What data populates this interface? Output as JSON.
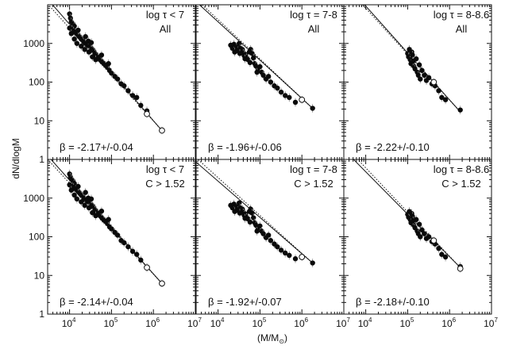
{
  "chart_data": {
    "type": "scatter",
    "log_x": true,
    "log_y": true,
    "xlim": [
      3000,
      10000000
    ],
    "ylim": [
      1,
      10000
    ],
    "xlabel": "(M/M",
    "xlabel_sub": "⊙",
    "xlabel_end": ")",
    "ylabel": "dN/dlogM",
    "x_tick_base": "10",
    "x_tick_exponents": [
      "4",
      "5",
      "6",
      "7"
    ],
    "y_tick_labels": [
      "1",
      "10",
      "100",
      "1000"
    ],
    "y_tick_values": [
      1,
      10,
      100,
      1000
    ],
    "panels": [
      {
        "row": 0,
        "col": 0,
        "label_line1": "log τ < 7",
        "label_line2": "All",
        "beta_text": "β = -2.17+/-0.04",
        "fit_solid": {
          "x": [
            3000,
            1600000
          ],
          "y": [
            14000,
            5.6
          ]
        },
        "fit_dotted": {
          "x": [
            3000,
            1600000
          ],
          "y": [
            10500,
            5.6
          ]
        },
        "points": [
          [
            10000,
            5800
          ],
          [
            10500,
            4500
          ],
          [
            11000,
            3600
          ],
          [
            12000,
            3200
          ],
          [
            13000,
            2800
          ],
          [
            10000,
            2500
          ],
          [
            11500,
            2300
          ],
          [
            12500,
            2100
          ],
          [
            14000,
            1900
          ],
          [
            15000,
            1750
          ],
          [
            16000,
            1650
          ],
          [
            17000,
            1500
          ],
          [
            18000,
            1450
          ],
          [
            19000,
            1300
          ],
          [
            20000,
            1250
          ],
          [
            21000,
            1150
          ],
          [
            22000,
            1100
          ],
          [
            24000,
            1000
          ],
          [
            25000,
            950
          ],
          [
            27000,
            900
          ],
          [
            28000,
            1150
          ],
          [
            30000,
            850
          ],
          [
            32000,
            780
          ],
          [
            34000,
            720
          ],
          [
            36000,
            680
          ],
          [
            38000,
            620
          ],
          [
            40000,
            560
          ],
          [
            43000,
            520
          ],
          [
            45000,
            470
          ],
          [
            48000,
            430
          ],
          [
            52000,
            400
          ],
          [
            55000,
            370
          ],
          [
            60000,
            330
          ],
          [
            66000,
            300
          ],
          [
            72000,
            270
          ],
          [
            80000,
            240
          ],
          [
            90000,
            200
          ],
          [
            100000,
            170
          ],
          [
            120000,
            140
          ],
          [
            140000,
            120
          ],
          [
            170000,
            90
          ],
          [
            200000,
            80
          ],
          [
            250000,
            60
          ],
          [
            320000,
            45
          ],
          [
            400000,
            40
          ],
          [
            500000,
            25
          ],
          [
            700000,
            18
          ],
          [
            13000,
            1300
          ],
          [
            15000,
            1000
          ],
          [
            19000,
            850
          ],
          [
            23000,
            700
          ],
          [
            29000,
            600
          ],
          [
            35000,
            450
          ],
          [
            42000,
            380
          ],
          [
            11000,
            1800
          ],
          [
            16000,
            2200
          ],
          [
            24000,
            1500
          ],
          [
            33000,
            1050
          ],
          [
            58000,
            500
          ],
          [
            85000,
            300
          ]
        ],
        "open_points": [
          [
            700000,
            15
          ],
          [
            1600000,
            5.6
          ]
        ]
      },
      {
        "row": 0,
        "col": 1,
        "label_line1": "log τ = 7-8",
        "label_line2": "All",
        "beta_text": "β = -1.96+/-0.06",
        "fit_solid": {
          "x": [
            3000,
            1800000
          ],
          "y": [
            12000,
            21
          ]
        },
        "fit_dotted": {
          "x": [
            3000,
            1800000
          ],
          "y": [
            14000,
            21
          ]
        },
        "points": [
          [
            20000,
            900
          ],
          [
            22000,
            750
          ],
          [
            24000,
            950
          ],
          [
            26000,
            700
          ],
          [
            28000,
            800
          ],
          [
            30000,
            650
          ],
          [
            32000,
            1000
          ],
          [
            34000,
            750
          ],
          [
            36000,
            620
          ],
          [
            38000,
            700
          ],
          [
            40000,
            560
          ],
          [
            42000,
            480
          ],
          [
            45000,
            520
          ],
          [
            48000,
            430
          ],
          [
            52000,
            380
          ],
          [
            56000,
            600
          ],
          [
            60000,
            700
          ],
          [
            65000,
            550
          ],
          [
            70000,
            420
          ],
          [
            75000,
            300
          ],
          [
            80000,
            260
          ],
          [
            90000,
            220
          ],
          [
            100000,
            250
          ],
          [
            110000,
            180
          ],
          [
            120000,
            150
          ],
          [
            140000,
            120
          ],
          [
            160000,
            140
          ],
          [
            180000,
            100
          ],
          [
            220000,
            80
          ],
          [
            260000,
            70
          ],
          [
            320000,
            55
          ],
          [
            400000,
            45
          ],
          [
            500000,
            40
          ],
          [
            700000,
            30
          ],
          [
            1800000,
            21
          ],
          [
            25000,
            600
          ],
          [
            33000,
            550
          ],
          [
            44000,
            400
          ],
          [
            58000,
            320
          ],
          [
            85000,
            180
          ]
        ],
        "open_points": [
          [
            1000000,
            35
          ]
        ]
      },
      {
        "row": 0,
        "col": 2,
        "label_line1": "log τ = 8-8.6",
        "label_line2": "All",
        "beta_text": "β = -2.22+/-0.10",
        "fit_solid": {
          "x": [
            3000,
            1800000
          ],
          "y": [
            40000,
            17
          ]
        },
        "fit_dotted": {
          "x": [
            3000,
            1800000
          ],
          "y": [
            34000,
            17
          ]
        },
        "points": [
          [
            100000,
            550
          ],
          [
            105000,
            450
          ],
          [
            110000,
            700
          ],
          [
            115000,
            380
          ],
          [
            120000,
            300
          ],
          [
            125000,
            600
          ],
          [
            130000,
            500
          ],
          [
            140000,
            260
          ],
          [
            150000,
            220
          ],
          [
            160000,
            400
          ],
          [
            170000,
            180
          ],
          [
            180000,
            150
          ],
          [
            200000,
            120
          ],
          [
            220000,
            200
          ],
          [
            250000,
            150
          ],
          [
            280000,
            110
          ],
          [
            320000,
            130
          ],
          [
            380000,
            90
          ],
          [
            450000,
            80
          ],
          [
            550000,
            60
          ],
          [
            650000,
            40
          ],
          [
            800000,
            35
          ],
          [
            1800000,
            19
          ],
          [
            135000,
            350
          ],
          [
            190000,
            280
          ]
        ],
        "open_points": [
          [
            420000,
            100
          ]
        ]
      },
      {
        "row": 1,
        "col": 0,
        "label_line1": "log τ < 7",
        "label_line2": "C > 1.52",
        "beta_text": "β = -2.14+/-0.04",
        "fit_solid": {
          "x": [
            3000,
            1600000
          ],
          "y": [
            12500,
            6.2
          ]
        },
        "fit_dotted": {
          "x": [
            3000,
            1600000
          ],
          "y": [
            10000,
            6.2
          ]
        },
        "points": [
          [
            10000,
            4200
          ],
          [
            10500,
            3500
          ],
          [
            11000,
            3100
          ],
          [
            12000,
            2800
          ],
          [
            13000,
            2400
          ],
          [
            10000,
            2200
          ],
          [
            11500,
            2000
          ],
          [
            12500,
            1900
          ],
          [
            14000,
            1700
          ],
          [
            15000,
            1600
          ],
          [
            16000,
            1500
          ],
          [
            17000,
            1400
          ],
          [
            18000,
            1300
          ],
          [
            19000,
            1200
          ],
          [
            20000,
            1150
          ],
          [
            21000,
            1050
          ],
          [
            22000,
            1000
          ],
          [
            24000,
            900
          ],
          [
            25000,
            870
          ],
          [
            27000,
            820
          ],
          [
            28000,
            1000
          ],
          [
            30000,
            780
          ],
          [
            32000,
            700
          ],
          [
            34000,
            650
          ],
          [
            36000,
            620
          ],
          [
            38000,
            560
          ],
          [
            40000,
            500
          ],
          [
            43000,
            470
          ],
          [
            45000,
            430
          ],
          [
            48000,
            400
          ],
          [
            52000,
            370
          ],
          [
            55000,
            340
          ],
          [
            60000,
            300
          ],
          [
            66000,
            270
          ],
          [
            72000,
            250
          ],
          [
            80000,
            220
          ],
          [
            90000,
            180
          ],
          [
            100000,
            160
          ],
          [
            120000,
            130
          ],
          [
            140000,
            110
          ],
          [
            170000,
            80
          ],
          [
            200000,
            70
          ],
          [
            250000,
            55
          ],
          [
            320000,
            42
          ],
          [
            400000,
            35
          ],
          [
            500000,
            25
          ],
          [
            700000,
            16
          ],
          [
            13000,
            1200
          ],
          [
            15000,
            950
          ],
          [
            19000,
            800
          ],
          [
            23000,
            650
          ],
          [
            29000,
            560
          ],
          [
            35000,
            420
          ],
          [
            42000,
            350
          ],
          [
            11000,
            1600
          ],
          [
            16000,
            2000
          ],
          [
            24000,
            1400
          ],
          [
            33000,
            950
          ],
          [
            58000,
            460
          ],
          [
            85000,
            280
          ]
        ],
        "open_points": [
          [
            700000,
            16
          ],
          [
            1600000,
            6.2
          ]
        ]
      },
      {
        "row": 1,
        "col": 1,
        "label_line1": "log τ = 7-8",
        "label_line2": "C > 1.52",
        "beta_text": "β = -1.92+/-0.07",
        "fit_solid": {
          "x": [
            3000,
            1800000
          ],
          "y": [
            8500,
            21
          ]
        },
        "fit_dotted": {
          "x": [
            3000,
            1800000
          ],
          "y": [
            11000,
            21
          ]
        },
        "points": [
          [
            20000,
            650
          ],
          [
            22000,
            560
          ],
          [
            24000,
            700
          ],
          [
            26000,
            520
          ],
          [
            28000,
            600
          ],
          [
            30000,
            480
          ],
          [
            32000,
            750
          ],
          [
            34000,
            560
          ],
          [
            36000,
            460
          ],
          [
            38000,
            520
          ],
          [
            40000,
            420
          ],
          [
            42000,
            360
          ],
          [
            45000,
            390
          ],
          [
            48000,
            320
          ],
          [
            52000,
            290
          ],
          [
            56000,
            450
          ],
          [
            60000,
            520
          ],
          [
            65000,
            410
          ],
          [
            70000,
            310
          ],
          [
            75000,
            230
          ],
          [
            80000,
            200
          ],
          [
            90000,
            170
          ],
          [
            100000,
            190
          ],
          [
            110000,
            140
          ],
          [
            120000,
            120
          ],
          [
            140000,
            95
          ],
          [
            160000,
            110
          ],
          [
            180000,
            80
          ],
          [
            220000,
            65
          ],
          [
            260000,
            55
          ],
          [
            320000,
            45
          ],
          [
            400000,
            38
          ],
          [
            500000,
            33
          ],
          [
            700000,
            27
          ],
          [
            1800000,
            21
          ],
          [
            25000,
            450
          ],
          [
            33000,
            410
          ],
          [
            44000,
            300
          ],
          [
            58000,
            240
          ],
          [
            85000,
            140
          ]
        ],
        "open_points": [
          [
            1000000,
            30
          ]
        ]
      },
      {
        "row": 1,
        "col": 2,
        "label_line1": "log τ = 8-8.6",
        "label_line2": "C > 1.52",
        "beta_text": "β = -2.18+/-0.10",
        "fit_solid": {
          "x": [
            3000,
            1800000
          ],
          "y": [
            18000,
            16
          ]
        },
        "fit_dotted": {
          "x": [
            3000,
            1800000
          ],
          "y": [
            24000,
            16
          ]
        },
        "points": [
          [
            100000,
            380
          ],
          [
            105000,
            320
          ],
          [
            110000,
            450
          ],
          [
            115000,
            280
          ],
          [
            120000,
            230
          ],
          [
            125000,
            400
          ],
          [
            130000,
            340
          ],
          [
            140000,
            200
          ],
          [
            150000,
            170
          ],
          [
            160000,
            280
          ],
          [
            170000,
            140
          ],
          [
            180000,
            120
          ],
          [
            200000,
            100
          ],
          [
            220000,
            150
          ],
          [
            250000,
            120
          ],
          [
            280000,
            90
          ],
          [
            320000,
            100
          ],
          [
            380000,
            75
          ],
          [
            450000,
            65
          ],
          [
            550000,
            50
          ],
          [
            650000,
            35
          ],
          [
            800000,
            30
          ],
          [
            1800000,
            17
          ],
          [
            135000,
            260
          ],
          [
            190000,
            210
          ]
        ],
        "open_points": [
          [
            1800000,
            15
          ],
          [
            420000,
            80
          ]
        ]
      }
    ]
  }
}
